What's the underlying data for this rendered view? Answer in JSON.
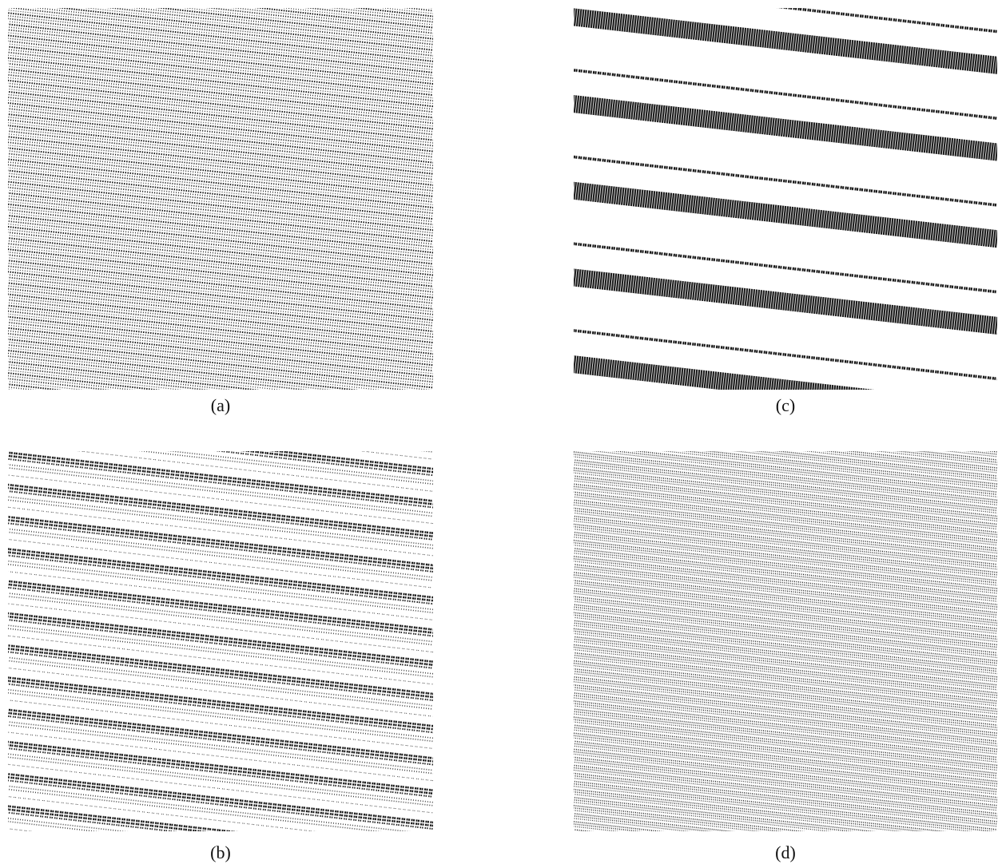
{
  "panels": [
    {
      "label": "(a)"
    },
    {
      "label": "(c)"
    },
    {
      "label": "(b)"
    },
    {
      "label": "(d)"
    }
  ]
}
